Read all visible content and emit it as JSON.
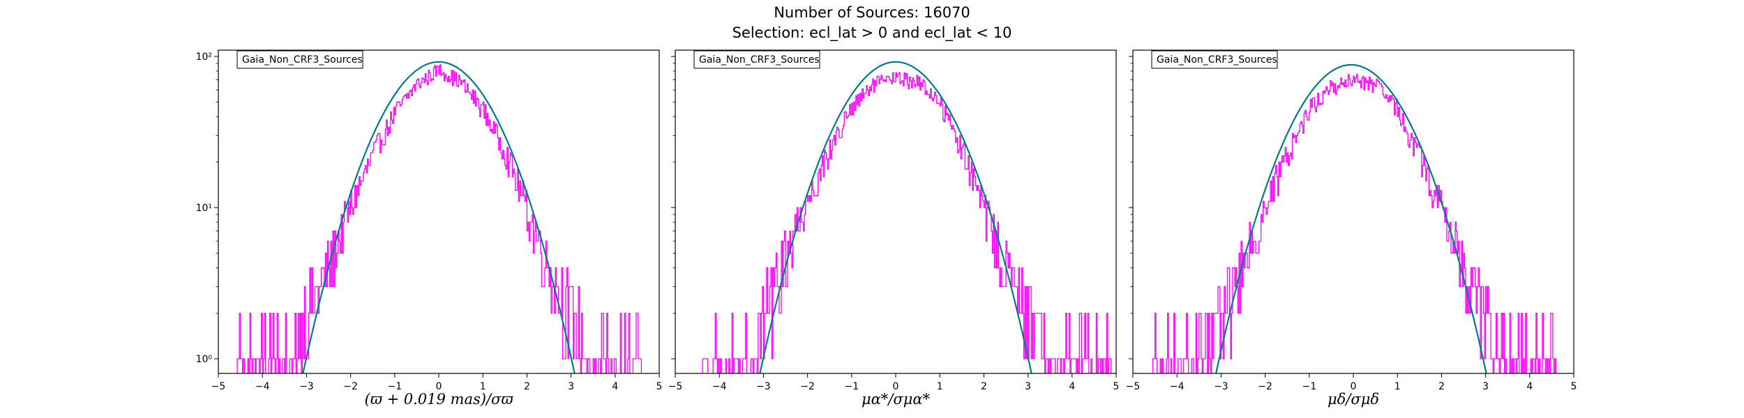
{
  "figure": {
    "title_line1": "Number of Sources: 16070",
    "title_line2": "Selection: ecl_lat > 0 and ecl_lat < 10"
  },
  "colors": {
    "histogram": "#ff00ff",
    "gaussian": "#007a8a"
  },
  "chart_data": [
    {
      "type": "histogram",
      "legend": "Gaia_Non_CRF3_Sources",
      "xlabel": "(ϖ + 0.019 mas)/σϖ",
      "xlim": [
        -5,
        5
      ],
      "ylim": [
        0.8,
        110
      ],
      "yscale": "log",
      "xticks": [
        -5,
        -4,
        -3,
        -2,
        -1,
        0,
        1,
        2,
        3,
        4,
        5
      ],
      "yticks": [
        {
          "value": 1,
          "label": "10⁰"
        },
        {
          "value": 10,
          "label": "10¹"
        },
        {
          "value": 100,
          "label": "10²"
        }
      ],
      "histogram_envelope": {
        "x": [
          -4.6,
          -4.0,
          -3.5,
          -3.0,
          -2.5,
          -2.0,
          -1.5,
          -1.0,
          -0.5,
          0.0,
          0.5,
          1.0,
          1.5,
          2.0,
          2.5,
          3.0,
          3.5,
          4.0,
          4.6
        ],
        "y": [
          1,
          1,
          1,
          2,
          4,
          10,
          22,
          42,
          65,
          82,
          68,
          45,
          24,
          10,
          4,
          2,
          1,
          1,
          1
        ]
      },
      "gaussian": {
        "amplitude": 92,
        "mean": 0.0,
        "sigma": 1.0
      }
    },
    {
      "type": "histogram",
      "legend": "Gaia_Non_CRF3_Sources",
      "xlabel": "μα*/σμα*",
      "xlim": [
        -5,
        5
      ],
      "ylim": [
        0.8,
        110
      ],
      "yscale": "log",
      "xticks": [
        -5,
        -4,
        -3,
        -2,
        -1,
        0,
        1,
        2,
        3,
        4,
        5
      ],
      "yticks": [
        {
          "value": 1,
          "label": ""
        },
        {
          "value": 10,
          "label": ""
        },
        {
          "value": 100,
          "label": ""
        }
      ],
      "histogram_envelope": {
        "x": [
          -4.4,
          -4.0,
          -3.5,
          -3.0,
          -2.5,
          -2.0,
          -1.5,
          -1.0,
          -0.5,
          0.0,
          0.5,
          1.0,
          1.5,
          2.0,
          2.5,
          3.0,
          3.5,
          4.0,
          4.9
        ],
        "y": [
          1,
          1,
          1,
          2,
          5,
          11,
          24,
          45,
          65,
          72,
          68,
          50,
          25,
          10,
          4,
          2,
          1,
          1,
          1
        ]
      },
      "gaussian": {
        "amplitude": 92,
        "mean": 0.0,
        "sigma": 1.0
      }
    },
    {
      "type": "histogram",
      "legend": "Gaia_Non_CRF3_Sources",
      "xlabel": "μδ/σμδ",
      "xlim": [
        -5,
        5
      ],
      "ylim": [
        0.8,
        110
      ],
      "yscale": "log",
      "xticks": [
        -5,
        -4,
        -3,
        -2,
        -1,
        0,
        1,
        2,
        3,
        4,
        5
      ],
      "yticks": [
        {
          "value": 1,
          "label": ""
        },
        {
          "value": 10,
          "label": ""
        },
        {
          "value": 100,
          "label": ""
        }
      ],
      "histogram_envelope": {
        "x": [
          -4.6,
          -4.0,
          -3.5,
          -3.0,
          -2.5,
          -2.0,
          -1.5,
          -1.0,
          -0.5,
          0.0,
          0.5,
          1.0,
          1.5,
          2.0,
          2.5,
          3.0,
          3.5,
          4.0,
          4.6
        ],
        "y": [
          1,
          1,
          1,
          2,
          4,
          10,
          22,
          45,
          62,
          70,
          65,
          45,
          22,
          10,
          4,
          2,
          1,
          1,
          1
        ]
      },
      "gaussian": {
        "amplitude": 88,
        "mean": -0.05,
        "sigma": 1.0
      }
    }
  ]
}
